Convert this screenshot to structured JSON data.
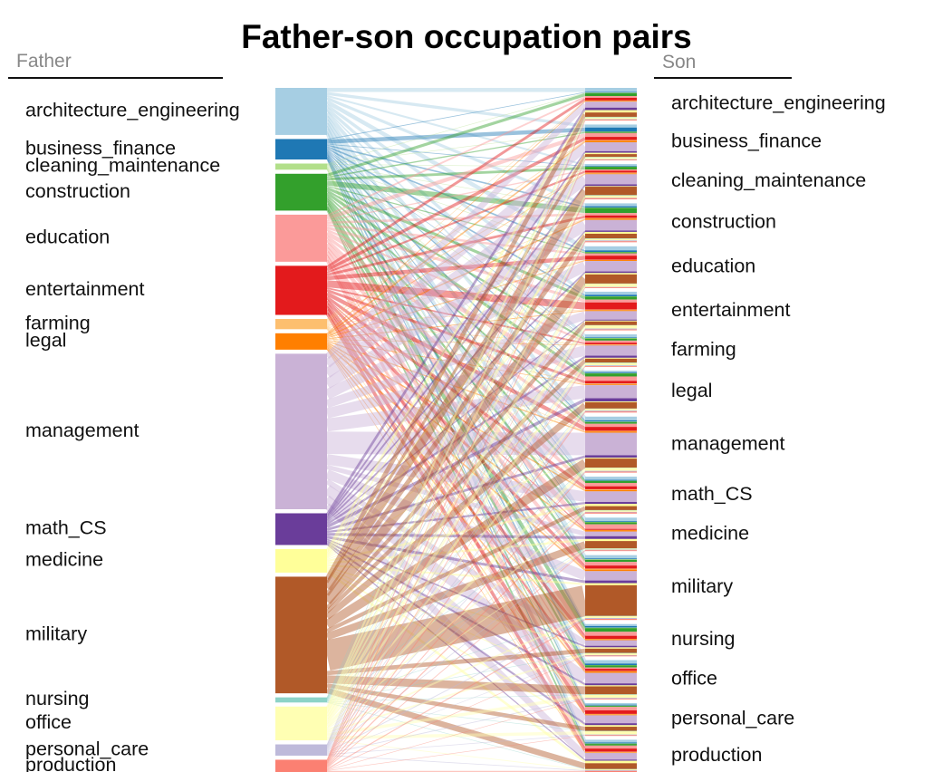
{
  "chart_data": {
    "type": "sankey",
    "title": "Father-son occupation pairs",
    "left_header": "Father",
    "right_header": "Son",
    "father_categories": [
      {
        "name": "architecture_engineering",
        "value": 46,
        "color": "#a6cee3"
      },
      {
        "name": "business_finance",
        "value": 20,
        "color": "#1f78b4"
      },
      {
        "name": "cleaning_maintenance",
        "value": 6,
        "color": "#b2df8a"
      },
      {
        "name": "construction",
        "value": 36,
        "color": "#33a02c"
      },
      {
        "name": "education",
        "value": 46,
        "color": "#fb9a99"
      },
      {
        "name": "entertainment",
        "value": 48,
        "color": "#e31a1c"
      },
      {
        "name": "farming",
        "value": 10,
        "color": "#fdbf6f"
      },
      {
        "name": "legal",
        "value": 16,
        "color": "#ff7f00"
      },
      {
        "name": "management",
        "value": 152,
        "color": "#cab2d6"
      },
      {
        "name": "math_CS",
        "value": 31,
        "color": "#6a3d9a"
      },
      {
        "name": "medicine",
        "value": 23,
        "color": "#ffff99"
      },
      {
        "name": "military",
        "value": 114,
        "color": "#b15928"
      },
      {
        "name": "nursing",
        "value": 5,
        "color": "#8dd3c7"
      },
      {
        "name": "office",
        "value": 33,
        "color": "#ffffb3"
      },
      {
        "name": "personal_care",
        "value": 11,
        "color": "#bebada"
      },
      {
        "name": "production",
        "value": 12,
        "color": "#fb8072"
      }
    ],
    "son_categories": [
      "architecture_engineering",
      "business_finance",
      "cleaning_maintenance",
      "construction",
      "education",
      "entertainment",
      "farming",
      "legal",
      "management",
      "math_CS",
      "medicine",
      "military",
      "nursing",
      "office",
      "personal_care",
      "production"
    ],
    "notable_flows": [
      {
        "source": "military",
        "target": "military",
        "value": 30
      },
      {
        "source": "management",
        "target": "management",
        "value": 22
      },
      {
        "source": "entertainment",
        "target": "entertainment",
        "value": 7
      },
      {
        "source": "construction",
        "target": "construction",
        "value": 5
      },
      {
        "source": "business_finance",
        "target": "business_finance",
        "value": 4
      },
      {
        "source": "architecture_engineering",
        "target": "architecture_engineering",
        "value": 4
      }
    ]
  }
}
